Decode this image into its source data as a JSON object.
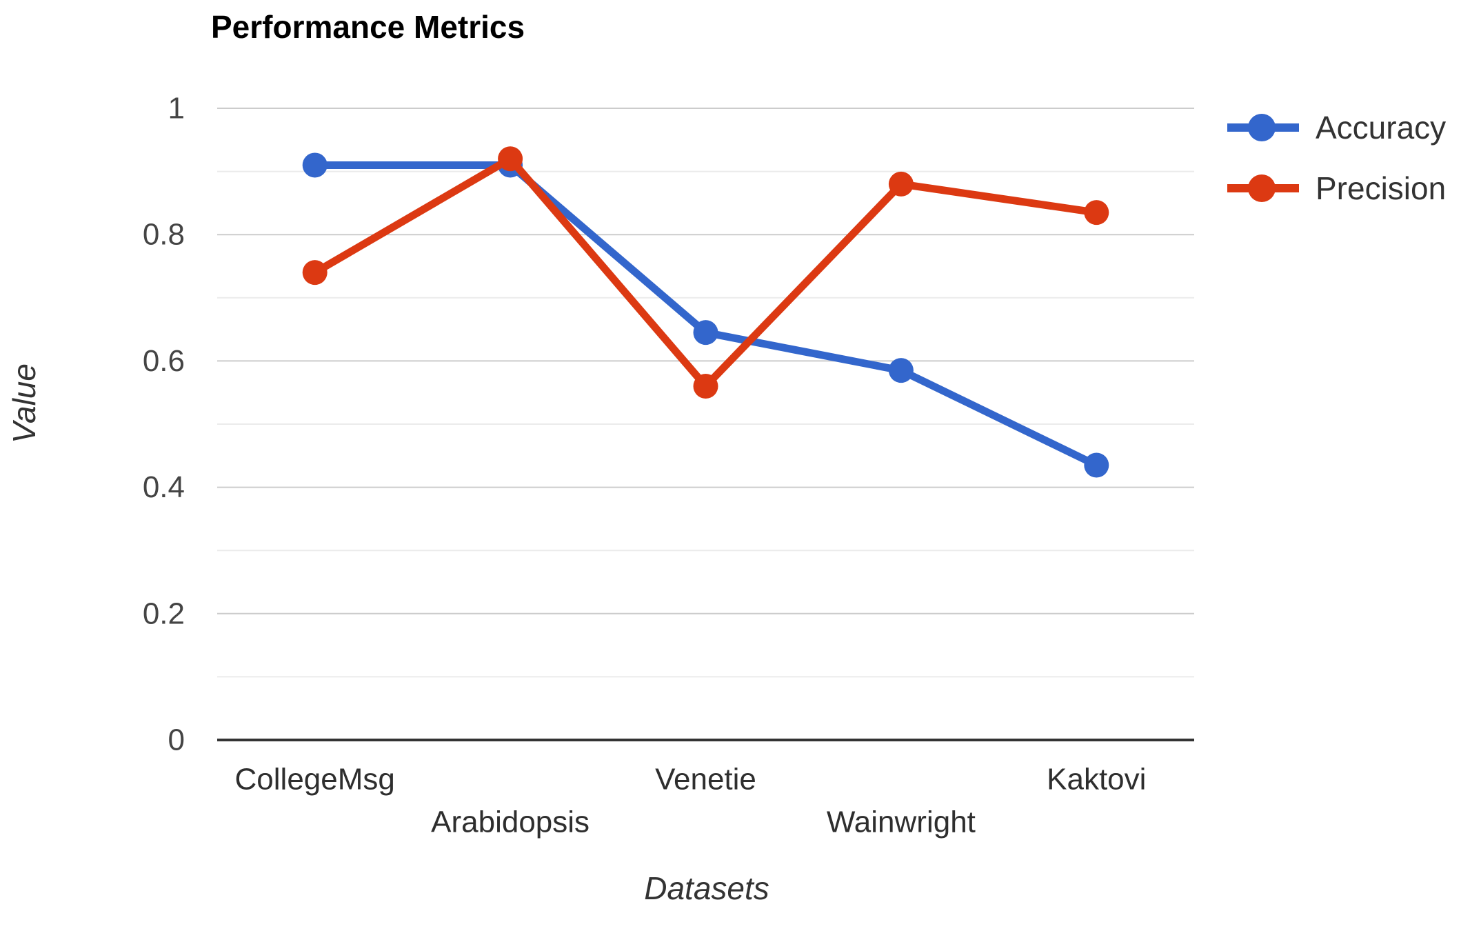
{
  "chart_data": {
    "type": "line",
    "title": "Performance Metrics",
    "xlabel": "Datasets",
    "ylabel": "Value",
    "categories": [
      "CollegeMsg",
      "Arabidopsis",
      "Venetie",
      "Wainwright",
      "Kaktovi"
    ],
    "series": [
      {
        "name": "Accuracy",
        "color": "#3366CC",
        "values": [
          0.91,
          0.91,
          0.645,
          0.585,
          0.435
        ]
      },
      {
        "name": "Precision",
        "color": "#DC3912",
        "values": [
          0.74,
          0.92,
          0.56,
          0.88,
          0.835
        ]
      }
    ],
    "ylim": [
      0,
      1
    ],
    "y_ticks": [
      0,
      0.2,
      0.4,
      0.6,
      0.8,
      1
    ],
    "y_tick_labels": [
      "0",
      "0.2",
      "0.4",
      "0.6",
      "0.8",
      "1"
    ],
    "minor_grid_step": 0.1,
    "grid": "horizontal gridlines on, major every 0.2, minor every 0.1",
    "legend_position": "right",
    "x_label_layout": "staggered two rows"
  },
  "colors": {
    "background": "#ffffff",
    "major_gridline": "#cccccc",
    "minor_gridline": "#ebebeb",
    "x_axis_line": "#333333",
    "y_tick_text": "#444444",
    "category_text": "#2e2e2e",
    "title_text": "#000000",
    "accent_blue": "#3366CC",
    "accent_red": "#DC3912"
  }
}
